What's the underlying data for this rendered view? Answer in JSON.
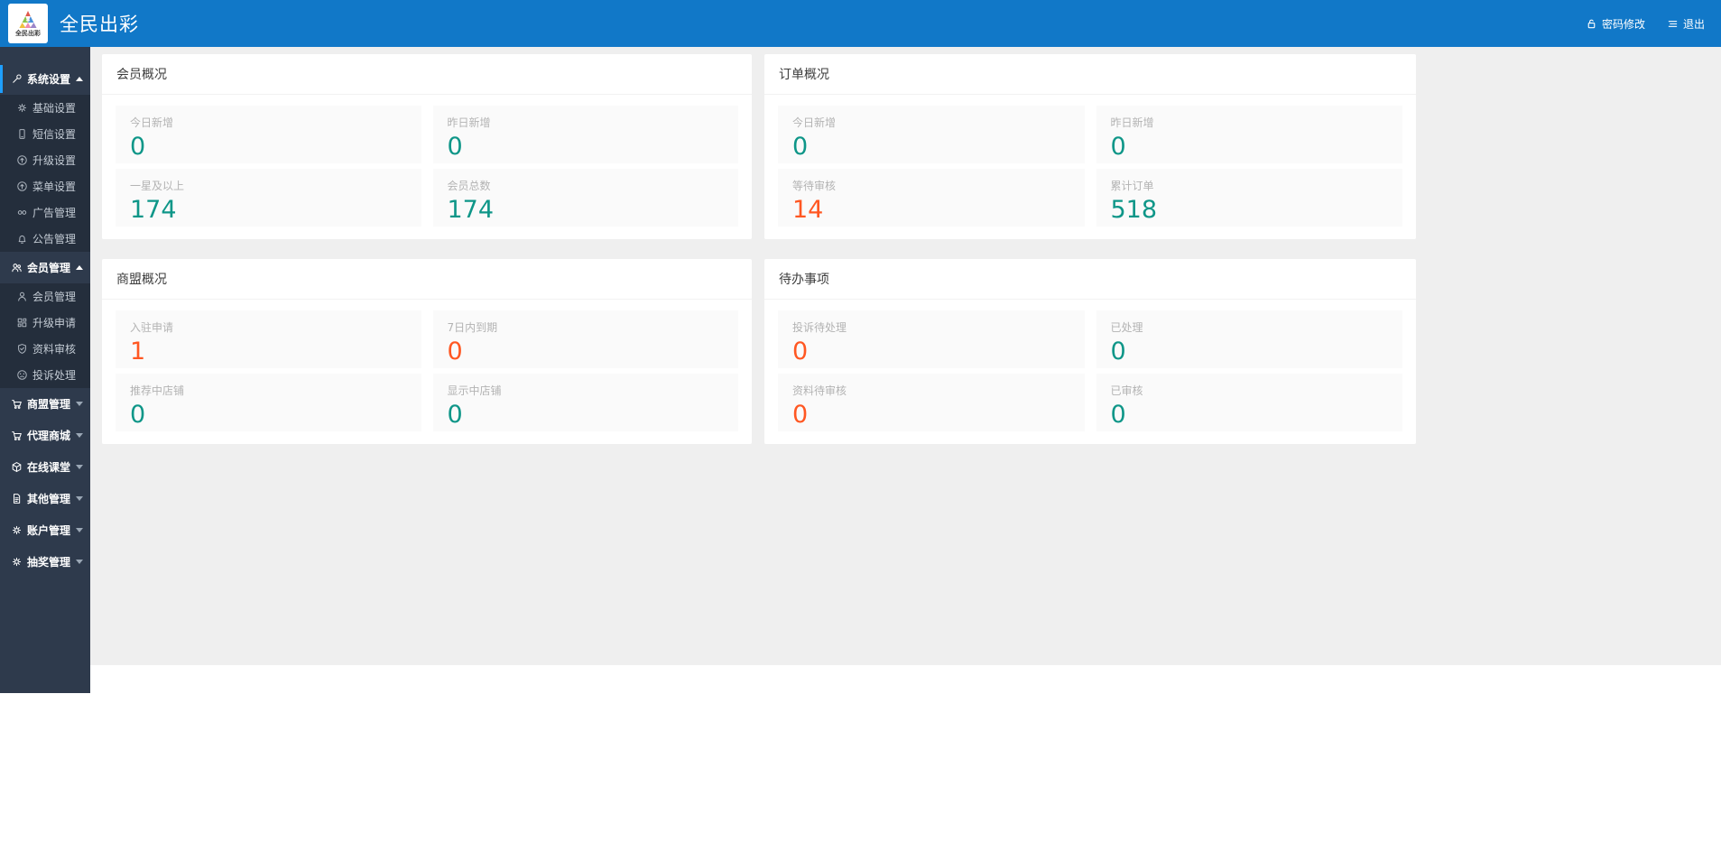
{
  "header": {
    "brand": {
      "logo_caption": "全民出彩",
      "title": "全民出彩",
      "logo_icon": "color-triangle"
    },
    "actions": [
      {
        "icon": "lock",
        "label": "密码修改"
      },
      {
        "icon": "logout",
        "label": "退出"
      }
    ]
  },
  "sidebar": {
    "items": [
      {
        "type": "parent",
        "icon": "wrench",
        "label": "系统设置",
        "state": "expanded",
        "active": true
      },
      {
        "type": "child",
        "icon": "gear",
        "label": "基础设置"
      },
      {
        "type": "child",
        "icon": "phone",
        "label": "短信设置"
      },
      {
        "type": "child",
        "icon": "circle-up",
        "label": "升级设置"
      },
      {
        "type": "child",
        "icon": "circle-up",
        "label": "菜单设置"
      },
      {
        "type": "child",
        "icon": "infinity",
        "label": "广告管理"
      },
      {
        "type": "child",
        "icon": "bell",
        "label": "公告管理"
      },
      {
        "type": "parent",
        "icon": "users",
        "label": "会员管理",
        "state": "expanded"
      },
      {
        "type": "child",
        "icon": "user",
        "label": "会员管理"
      },
      {
        "type": "child",
        "icon": "grid",
        "label": "升级申请"
      },
      {
        "type": "child",
        "icon": "shield-check",
        "label": "资料审核"
      },
      {
        "type": "child",
        "icon": "sad-face",
        "label": "投诉处理"
      },
      {
        "type": "parent",
        "icon": "cart",
        "label": "商盟管理",
        "state": "collapsed"
      },
      {
        "type": "parent",
        "icon": "cart",
        "label": "代理商城",
        "state": "collapsed"
      },
      {
        "type": "parent",
        "icon": "cube",
        "label": "在线课堂",
        "state": "collapsed"
      },
      {
        "type": "parent",
        "icon": "doc",
        "label": "其他管理",
        "state": "collapsed"
      },
      {
        "type": "parent",
        "icon": "gear",
        "label": "账户管理",
        "state": "collapsed"
      },
      {
        "type": "parent",
        "icon": "gear",
        "label": "抽奖管理",
        "state": "collapsed"
      }
    ]
  },
  "cards": [
    {
      "title": "会员概况",
      "stats": [
        {
          "label": "今日新增",
          "value": "0",
          "color": "teal"
        },
        {
          "label": "昨日新增",
          "value": "0",
          "color": "teal"
        },
        {
          "label": "一星及以上",
          "value": "174",
          "color": "teal"
        },
        {
          "label": "会员总数",
          "value": "174",
          "color": "teal"
        }
      ]
    },
    {
      "title": "订单概况",
      "stats": [
        {
          "label": "今日新增",
          "value": "0",
          "color": "teal"
        },
        {
          "label": "昨日新增",
          "value": "0",
          "color": "teal"
        },
        {
          "label": "等待审核",
          "value": "14",
          "color": "red"
        },
        {
          "label": "累计订单",
          "value": "518",
          "color": "teal"
        }
      ]
    },
    {
      "title": "商盟概况",
      "stats": [
        {
          "label": "入驻申请",
          "value": "1",
          "color": "red"
        },
        {
          "label": "7日内到期",
          "value": "0",
          "color": "red"
        },
        {
          "label": "推荐中店铺",
          "value": "0",
          "color": "teal"
        },
        {
          "label": "显示中店铺",
          "value": "0",
          "color": "teal"
        }
      ]
    },
    {
      "title": "待办事项",
      "stats": [
        {
          "label": "投诉待处理",
          "value": "0",
          "color": "red"
        },
        {
          "label": "已处理",
          "value": "0",
          "color": "teal"
        },
        {
          "label": "资料待审核",
          "value": "0",
          "color": "red"
        },
        {
          "label": "已审核",
          "value": "0",
          "color": "teal"
        }
      ]
    }
  ],
  "colors": {
    "header_blue": "#1178c8",
    "sidebar_bg": "#2e3a4c",
    "submenu_bg": "#242e3c",
    "main_bg": "#efefef",
    "stat_teal": "#0e9688",
    "stat_red": "#ff5722",
    "active_bar": "#1e9fff"
  }
}
